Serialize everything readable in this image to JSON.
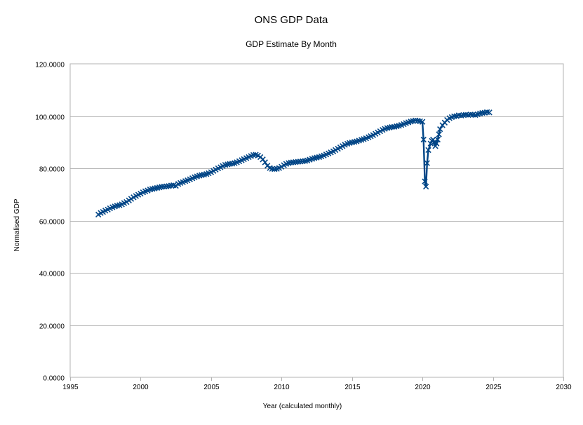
{
  "chart_data": {
    "type": "scatter",
    "title": "ONS GDP Data",
    "subtitle": "GDP Estimate By Month",
    "xlabel": "Year (calculated monthly)",
    "ylabel": "Normalised GDP",
    "xlim": [
      1995,
      2030
    ],
    "ylim": [
      0,
      120
    ],
    "x_ticks": [
      1995,
      2000,
      2005,
      2010,
      2015,
      2020,
      2025,
      2030
    ],
    "x_tick_labels": [
      "1995",
      "2000",
      "2005",
      "2010",
      "2015",
      "2020",
      "2025",
      "2030"
    ],
    "y_ticks": [
      0,
      20,
      40,
      60,
      80,
      100,
      120
    ],
    "y_tick_labels": [
      "0.0000",
      "20.0000",
      "40.0000",
      "60.0000",
      "80.0000",
      "100.0000",
      "120.0000"
    ],
    "grid": {
      "horizontal": true,
      "vertical": false
    },
    "legend": "none",
    "marker": "x",
    "series_color": "#004586",
    "series": [
      {
        "points": [
          [
            1997.0,
            62.3
          ],
          [
            1997.17,
            62.9
          ],
          [
            1997.33,
            63.3
          ],
          [
            1997.5,
            63.8
          ],
          [
            1997.67,
            64.2
          ],
          [
            1997.83,
            64.7
          ],
          [
            1998.0,
            65.1
          ],
          [
            1998.17,
            65.4
          ],
          [
            1998.33,
            65.7
          ],
          [
            1998.5,
            65.9
          ],
          [
            1998.67,
            66.2
          ],
          [
            1998.83,
            66.7
          ],
          [
            1999.0,
            67.1
          ],
          [
            1999.17,
            67.7
          ],
          [
            1999.33,
            68.3
          ],
          [
            1999.5,
            68.9
          ],
          [
            1999.67,
            69.4
          ],
          [
            1999.83,
            69.9
          ],
          [
            2000.0,
            70.3
          ],
          [
            2000.17,
            70.8
          ],
          [
            2000.33,
            71.2
          ],
          [
            2000.5,
            71.5
          ],
          [
            2000.67,
            71.9
          ],
          [
            2000.83,
            72.1
          ],
          [
            2001.0,
            72.3
          ],
          [
            2001.17,
            72.5
          ],
          [
            2001.33,
            72.7
          ],
          [
            2001.5,
            72.9
          ],
          [
            2001.67,
            73.0
          ],
          [
            2001.83,
            73.1
          ],
          [
            2002.0,
            73.2
          ],
          [
            2002.17,
            73.4
          ],
          [
            2002.33,
            73.5
          ],
          [
            2002.5,
            73.3
          ],
          [
            2002.67,
            74.0
          ],
          [
            2002.83,
            74.4
          ],
          [
            2003.0,
            74.7
          ],
          [
            2003.17,
            75.1
          ],
          [
            2003.33,
            75.4
          ],
          [
            2003.5,
            75.8
          ],
          [
            2003.67,
            76.2
          ],
          [
            2003.83,
            76.6
          ],
          [
            2004.0,
            76.9
          ],
          [
            2004.17,
            77.2
          ],
          [
            2004.33,
            77.4
          ],
          [
            2004.5,
            77.6
          ],
          [
            2004.67,
            77.8
          ],
          [
            2004.83,
            78.1
          ],
          [
            2005.0,
            78.5
          ],
          [
            2005.17,
            79.0
          ],
          [
            2005.33,
            79.5
          ],
          [
            2005.5,
            80.0
          ],
          [
            2005.67,
            80.4
          ],
          [
            2005.83,
            80.9
          ],
          [
            2006.0,
            81.3
          ],
          [
            2006.17,
            81.5
          ],
          [
            2006.33,
            81.7
          ],
          [
            2006.5,
            81.8
          ],
          [
            2006.67,
            82.0
          ],
          [
            2006.83,
            82.3
          ],
          [
            2007.0,
            82.7
          ],
          [
            2007.17,
            83.1
          ],
          [
            2007.33,
            83.5
          ],
          [
            2007.5,
            83.9
          ],
          [
            2007.67,
            84.3
          ],
          [
            2007.83,
            84.7
          ],
          [
            2008.0,
            85.1
          ],
          [
            2008.17,
            85.2
          ],
          [
            2008.33,
            84.9
          ],
          [
            2008.5,
            84.3
          ],
          [
            2008.67,
            83.4
          ],
          [
            2008.83,
            82.3
          ],
          [
            2009.0,
            81.0
          ],
          [
            2009.17,
            80.1
          ],
          [
            2009.33,
            79.8
          ],
          [
            2009.5,
            79.7
          ],
          [
            2009.67,
            79.8
          ],
          [
            2009.83,
            80.1
          ],
          [
            2010.0,
            80.6
          ],
          [
            2010.17,
            81.2
          ],
          [
            2010.33,
            81.7
          ],
          [
            2010.5,
            82.0
          ],
          [
            2010.67,
            82.2
          ],
          [
            2010.83,
            82.3
          ],
          [
            2011.0,
            82.4
          ],
          [
            2011.17,
            82.5
          ],
          [
            2011.33,
            82.6
          ],
          [
            2011.5,
            82.7
          ],
          [
            2011.67,
            82.8
          ],
          [
            2011.83,
            83.0
          ],
          [
            2012.0,
            83.3
          ],
          [
            2012.17,
            83.6
          ],
          [
            2012.33,
            83.9
          ],
          [
            2012.5,
            84.1
          ],
          [
            2012.67,
            84.3
          ],
          [
            2012.83,
            84.6
          ],
          [
            2013.0,
            84.9
          ],
          [
            2013.17,
            85.3
          ],
          [
            2013.33,
            85.7
          ],
          [
            2013.5,
            86.1
          ],
          [
            2013.67,
            86.5
          ],
          [
            2013.83,
            87.0
          ],
          [
            2014.0,
            87.5
          ],
          [
            2014.17,
            88.0
          ],
          [
            2014.33,
            88.5
          ],
          [
            2014.5,
            89.0
          ],
          [
            2014.67,
            89.4
          ],
          [
            2014.83,
            89.7
          ],
          [
            2015.0,
            89.9
          ],
          [
            2015.17,
            90.1
          ],
          [
            2015.33,
            90.3
          ],
          [
            2015.5,
            90.6
          ],
          [
            2015.67,
            90.9
          ],
          [
            2015.83,
            91.2
          ],
          [
            2016.0,
            91.5
          ],
          [
            2016.17,
            91.9
          ],
          [
            2016.33,
            92.3
          ],
          [
            2016.5,
            92.7
          ],
          [
            2016.67,
            93.2
          ],
          [
            2016.83,
            93.7
          ],
          [
            2017.0,
            94.2
          ],
          [
            2017.17,
            94.7
          ],
          [
            2017.33,
            95.1
          ],
          [
            2017.5,
            95.4
          ],
          [
            2017.67,
            95.6
          ],
          [
            2017.83,
            95.8
          ],
          [
            2018.0,
            95.9
          ],
          [
            2018.17,
            96.1
          ],
          [
            2018.33,
            96.3
          ],
          [
            2018.5,
            96.6
          ],
          [
            2018.67,
            96.9
          ],
          [
            2018.83,
            97.3
          ],
          [
            2019.0,
            97.6
          ],
          [
            2019.17,
            97.9
          ],
          [
            2019.33,
            98.1
          ],
          [
            2019.5,
            98.3
          ],
          [
            2019.67,
            98.2
          ],
          [
            2019.83,
            98.0
          ],
          [
            2020.0,
            97.8
          ],
          [
            2020.08,
            91.0
          ],
          [
            2020.17,
            75.0
          ],
          [
            2020.25,
            73.0
          ],
          [
            2020.33,
            82.0
          ],
          [
            2020.42,
            87.0
          ],
          [
            2020.58,
            89.5
          ],
          [
            2020.67,
            90.5
          ],
          [
            2020.75,
            91.0
          ],
          [
            2020.83,
            90.0
          ],
          [
            2020.92,
            88.5
          ],
          [
            2021.0,
            89.5
          ],
          [
            2021.08,
            91.0
          ],
          [
            2021.17,
            93.0
          ],
          [
            2021.25,
            95.0
          ],
          [
            2021.42,
            96.5
          ],
          [
            2021.58,
            97.5
          ],
          [
            2021.75,
            98.5
          ],
          [
            2021.92,
            99.2
          ],
          [
            2022.08,
            99.6
          ],
          [
            2022.25,
            99.9
          ],
          [
            2022.42,
            100.0
          ],
          [
            2022.58,
            100.3
          ],
          [
            2022.75,
            100.2
          ],
          [
            2022.92,
            100.4
          ],
          [
            2023.08,
            100.5
          ],
          [
            2023.25,
            100.4
          ],
          [
            2023.42,
            100.6
          ],
          [
            2023.58,
            100.5
          ],
          [
            2023.75,
            100.4
          ],
          [
            2023.92,
            100.7
          ],
          [
            2024.08,
            101.0
          ],
          [
            2024.25,
            101.2
          ],
          [
            2024.42,
            101.3
          ],
          [
            2024.58,
            101.5
          ],
          [
            2024.75,
            101.4
          ]
        ]
      }
    ]
  }
}
